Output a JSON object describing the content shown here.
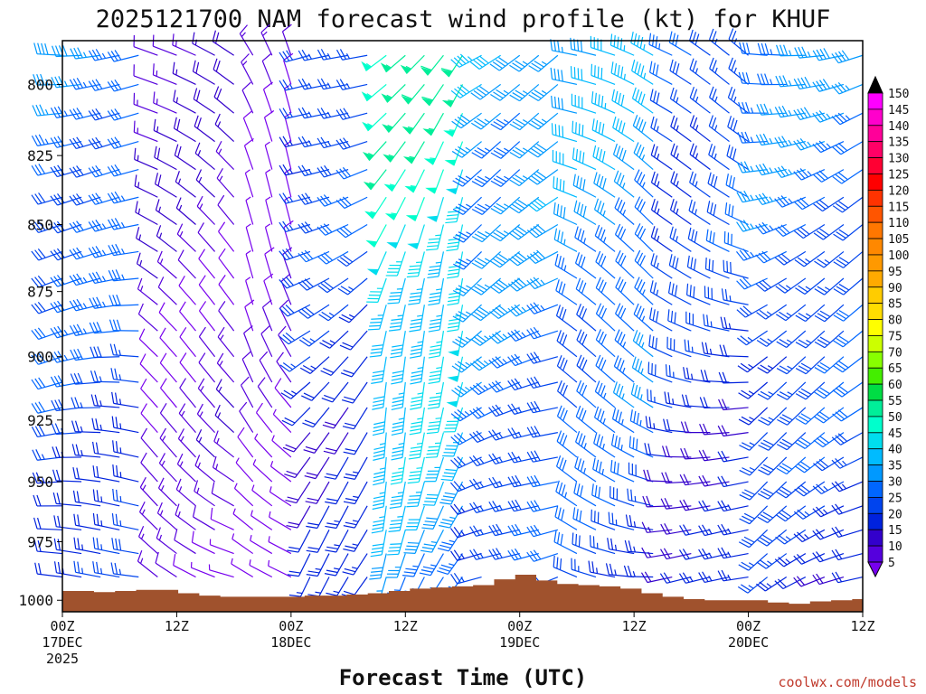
{
  "chart_data": {
    "type": "wind-barbs",
    "title": "2025121700 NAM forecast wind profile (kt) for KHUF",
    "xlabel": "Forecast Time (UTC)",
    "ylabel": "",
    "credit": "coolwx.com/models",
    "y_range_mb": [
      1005,
      785
    ],
    "y_ticks": [
      "800",
      "825",
      "850",
      "875",
      "900",
      "925",
      "950",
      "975",
      "1000"
    ],
    "y_tick_values": [
      800,
      825,
      850,
      875,
      900,
      925,
      950,
      975,
      1000
    ],
    "x_range_hours": [
      0,
      84
    ],
    "x_ticks": [
      {
        "hour": 0,
        "line1": "00Z",
        "line2": "17DEC",
        "line3": "2025"
      },
      {
        "hour": 12,
        "line1": "12Z",
        "line2": "",
        "line3": ""
      },
      {
        "hour": 24,
        "line1": "00Z",
        "line2": "18DEC",
        "line3": ""
      },
      {
        "hour": 36,
        "line1": "12Z",
        "line2": "",
        "line3": ""
      },
      {
        "hour": 48,
        "line1": "00Z",
        "line2": "19DEC",
        "line3": ""
      },
      {
        "hour": 60,
        "line1": "12Z",
        "line2": "",
        "line3": ""
      },
      {
        "hour": 72,
        "line1": "00Z",
        "line2": "20DEC",
        "line3": ""
      },
      {
        "hour": 84,
        "line1": "12Z",
        "line2": "",
        "line3": ""
      }
    ],
    "colorbar": {
      "labels": [
        "150",
        "145",
        "140",
        "135",
        "130",
        "125",
        "120",
        "115",
        "110",
        "105",
        "100",
        "95",
        "90",
        "85",
        "80",
        "75",
        "70",
        "65",
        "60",
        "55",
        "50",
        "45",
        "40",
        "35",
        "30",
        "25",
        "20",
        "15",
        "10",
        "5"
      ],
      "colors": [
        "#ff00ff",
        "#ff00cc",
        "#ff0099",
        "#ff0066",
        "#ff0033",
        "#ff0000",
        "#ff3300",
        "#ff5500",
        "#ff7700",
        "#ff8800",
        "#ff9900",
        "#ffaa00",
        "#ffcc00",
        "#ffdd00",
        "#ffff00",
        "#ccff00",
        "#88ff00",
        "#44ee00",
        "#00dd44",
        "#00ee99",
        "#00ffcc",
        "#00ddee",
        "#00bbff",
        "#0099ff",
        "#0066ff",
        "#0044ee",
        "#0022dd",
        "#3300cc",
        "#5500dd",
        "#7700ee"
      ]
    },
    "surface_pressure_mb": [
      996,
      996,
      996.5,
      996,
      995.5,
      995.5,
      997,
      998,
      998.5,
      998.5,
      998.5,
      998.5,
      998,
      998,
      997.5,
      997,
      996,
      995,
      994.5,
      994,
      993.5,
      991,
      989,
      991.5,
      993,
      993.5,
      994,
      995,
      997,
      998.5,
      999.5,
      1000,
      1000,
      1000,
      1001,
      1001.5,
      1000.5,
      1000,
      999.5
    ],
    "surface_color": "#a0522d",
    "barb_levels_mb": [
      790,
      800,
      810,
      820,
      830,
      840,
      850,
      860,
      870,
      880,
      890,
      900,
      910,
      920,
      930,
      940,
      950,
      960,
      970,
      980,
      990,
      1000
    ],
    "barb_times_hours": [
      0,
      2,
      4,
      6,
      8,
      10,
      12,
      14,
      16,
      18,
      20,
      22,
      24,
      26,
      28,
      30,
      32,
      34,
      36,
      38,
      40,
      42,
      44,
      46,
      48,
      50,
      52,
      54,
      56,
      58,
      60,
      62,
      64,
      66,
      68,
      70,
      72,
      74,
      76,
      78,
      80,
      82,
      84
    ],
    "wind_regimes": [
      {
        "t_start": 0,
        "t_end": 10,
        "speed_kt": 35,
        "dir_deg": 275
      },
      {
        "t_start": 10,
        "t_end": 20,
        "speed_kt": 15,
        "dir_deg": 310
      },
      {
        "t_start": 20,
        "t_end": 26,
        "speed_kt": 10,
        "dir_deg": 330
      },
      {
        "t_start": 26,
        "t_end": 34,
        "speed_kt": 30,
        "dir_deg": 240
      },
      {
        "t_start": 34,
        "t_end": 44,
        "speed_kt": 55,
        "dir_deg": 215
      },
      {
        "t_start": 44,
        "t_end": 54,
        "speed_kt": 40,
        "dir_deg": 250
      },
      {
        "t_start": 54,
        "t_end": 64,
        "speed_kt": 40,
        "dir_deg": 300
      },
      {
        "t_start": 64,
        "t_end": 74,
        "speed_kt": 30,
        "dir_deg": 290
      },
      {
        "t_start": 74,
        "t_end": 84,
        "speed_kt": 35,
        "dir_deg": 255
      }
    ]
  }
}
